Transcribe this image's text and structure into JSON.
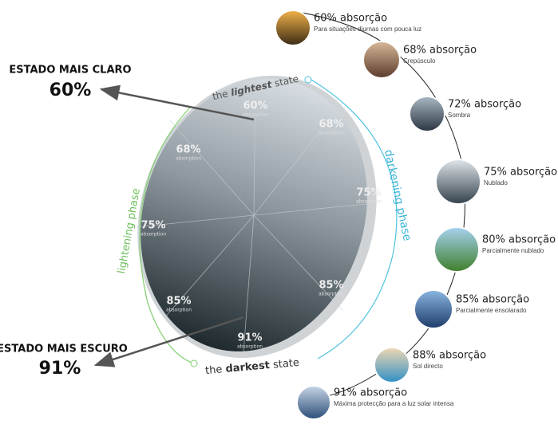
{
  "callouts": [
    {
      "title": "ESTADO MAIS CLARO",
      "value": "60%"
    },
    {
      "title": "ESTADO MAIS ESCURO",
      "value": "91%"
    }
  ],
  "lens": {
    "top_label": {
      "pre": "the",
      "bold": "lightest",
      "post": "state"
    },
    "bottom_label": {
      "pre": "the",
      "bold": "darkest",
      "post": "state"
    },
    "right_phase": "darkening phase",
    "left_phase": "lightening phase",
    "segments": [
      {
        "value": "60%",
        "label": "absorption"
      },
      {
        "value": "68%",
        "label": "absorption"
      },
      {
        "value": "75%",
        "label": "absorption"
      },
      {
        "value": "85%",
        "label": "absorption"
      },
      {
        "value": "91%",
        "label": "absorption"
      },
      {
        "value": "85%",
        "label": "absorption"
      },
      {
        "value": "75%",
        "label": "absorption"
      },
      {
        "value": "68%",
        "label": "absorption"
      }
    ]
  },
  "conditions": [
    {
      "label": "60% absorção",
      "description": "Para situações diurnas com pouca luz"
    },
    {
      "label": "68% absorção",
      "description": "Crepúsculo"
    },
    {
      "label": "72% absorção",
      "description": "Sombra"
    },
    {
      "label": "75% absorção",
      "description": "Nublado"
    },
    {
      "label": "80% absorção",
      "description": "Parcialmente nublado"
    },
    {
      "label": "85% absorção",
      "description": "Parcialmente ensolarado"
    },
    {
      "label": "88% absorção",
      "description": "Sol directo"
    },
    {
      "label": "91% absorção",
      "description": "Máxima protecção para a luz solar intensa"
    }
  ]
}
